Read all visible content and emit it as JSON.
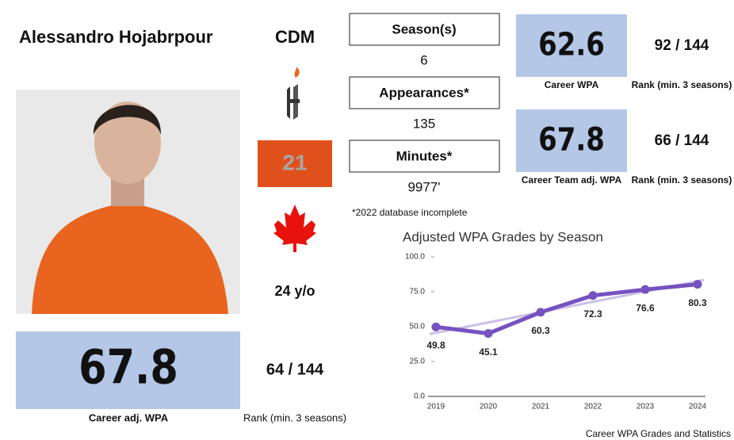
{
  "player": {
    "name": "Alessandro Hojabrpour",
    "position": "CDM",
    "number": "21",
    "age": "24 y/o"
  },
  "career_adj_wpa": {
    "value": "67.8",
    "label": "Career adj. WPA",
    "rank": "64 / 144",
    "rank_label": "Rank (min. 3 seasons)"
  },
  "stats": [
    {
      "label": "Season(s)",
      "value": "6"
    },
    {
      "label": "Appearances*",
      "value": "135"
    },
    {
      "label": "Minutes*",
      "value": "9977'"
    }
  ],
  "footnote": "*2022 database incomplete",
  "career_wpa": {
    "value": "62.6",
    "label": "Career WPA",
    "rank": "92 / 144",
    "rank_label": "Rank (min. 3 seasons)"
  },
  "career_team_adj_wpa": {
    "value": "67.8",
    "label": "Career Team adj. WPA",
    "rank": "66 / 144",
    "rank_label": "Rank (min. 3 seasons)"
  },
  "chart_data": {
    "type": "line",
    "title": "Adjusted WPA Grades by Season",
    "categories": [
      "2019",
      "2020",
      "2021",
      "2022",
      "2023",
      "2024"
    ],
    "values": [
      49.8,
      45.1,
      60.3,
      72.3,
      76.6,
      80.3
    ],
    "color": "#7652c0",
    "trendline": true,
    "trend_color": "#cdbfe8",
    "ylim": [
      0,
      100
    ],
    "yticks": [
      {
        "value": 0,
        "label": "0.0"
      },
      {
        "value": 25,
        "label": "25.0"
      },
      {
        "value": 50,
        "label": "50.0"
      },
      {
        "value": 75,
        "label": "75.0"
      },
      {
        "value": 100,
        "label": "100.0"
      }
    ],
    "grid": false
  },
  "footer": "Career WPA Grades and Statistics"
}
